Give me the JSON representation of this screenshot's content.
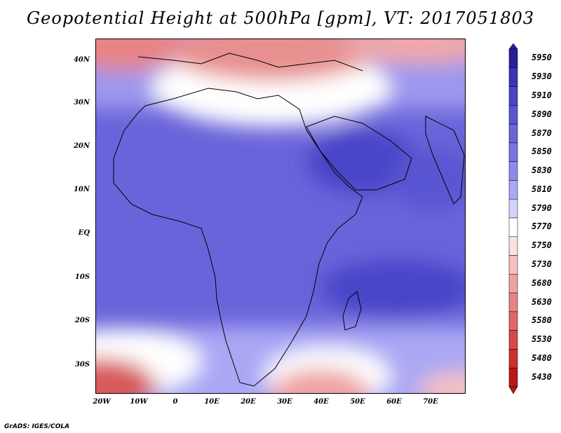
{
  "title": "Geopotential Height at 500hPa [gpm], VT: 2017051803",
  "credit": "GrADS: IGES/COLA",
  "lat_labels": [
    "40N",
    "30N",
    "20N",
    "10N",
    "EQ",
    "10S",
    "20S",
    "30S"
  ],
  "lon_labels": [
    "20W",
    "10W",
    "0",
    "10E",
    "20E",
    "30E",
    "40E",
    "50E",
    "60E",
    "70E"
  ],
  "colorbar": {
    "levels": [
      5950,
      5930,
      5910,
      5890,
      5870,
      5850,
      5830,
      5810,
      5790,
      5770,
      5750,
      5730,
      5680,
      5630,
      5580,
      5530,
      5480,
      5430
    ],
    "colors": [
      "#2a1f9a",
      "#3a32b8",
      "#4a44c8",
      "#5a54d2",
      "#6a64da",
      "#7a74e2",
      "#8e8aec",
      "#aaa8f4",
      "#d4d4fa",
      "#ffffff",
      "#fbe0e0",
      "#f6c0c0",
      "#f0a2a2",
      "#e88484",
      "#e06666",
      "#d84848",
      "#cc3030",
      "#b81818"
    ]
  }
}
